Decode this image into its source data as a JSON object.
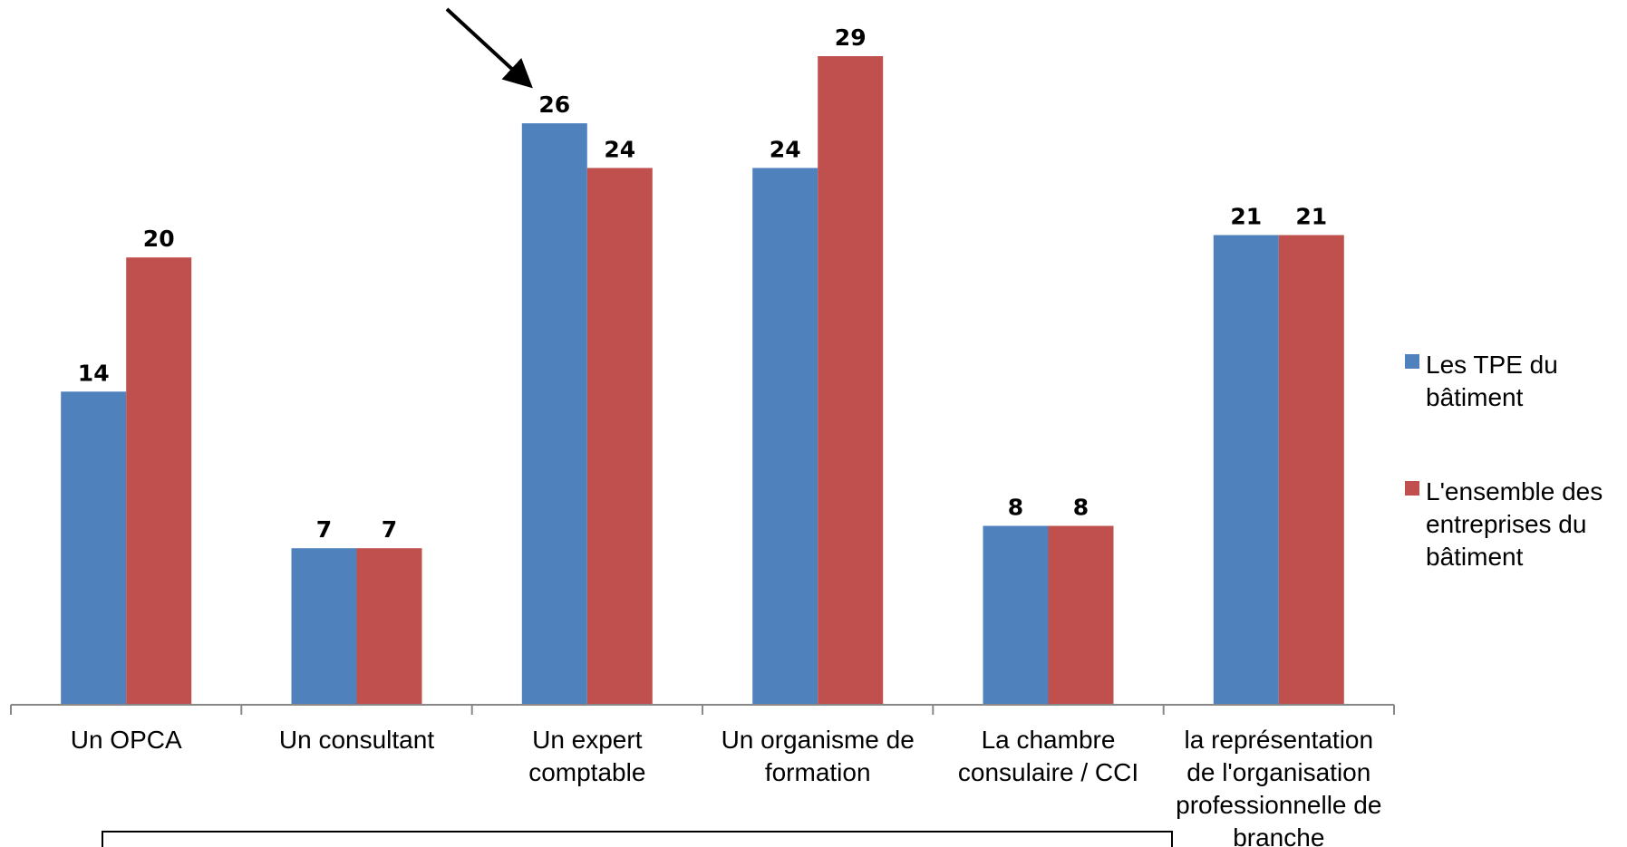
{
  "chart_data": {
    "type": "bar",
    "categories": [
      "Un OPCA",
      "Un consultant",
      "Un expert comptable",
      "Un organisme de formation",
      "La chambre consulaire / CCI",
      "la représentation de l'organisation professionnelle de branche"
    ],
    "category_lines": [
      [
        "Un OPCA"
      ],
      [
        "Un consultant"
      ],
      [
        "Un expert",
        "comptable"
      ],
      [
        "Un organisme de",
        "formation"
      ],
      [
        "La chambre",
        "consulaire / CCI"
      ],
      [
        "la représentation",
        "de l'organisation",
        "professionnelle de",
        "branche"
      ]
    ],
    "series": [
      {
        "name": "Les TPE du bâtiment",
        "name_lines": [
          "Les TPE du",
          "bâtiment"
        ],
        "color": "#4F81BD",
        "values": [
          14,
          7,
          26,
          24,
          8,
          21
        ]
      },
      {
        "name": "L'ensemble des entreprises du bâtiment",
        "name_lines": [
          "L'ensemble des",
          "entreprises du",
          "bâtiment"
        ],
        "color": "#C0504D",
        "values": [
          20,
          7,
          24,
          29,
          8,
          21
        ]
      }
    ],
    "ylim": [
      0,
      29
    ],
    "grid": false,
    "legend": "right",
    "annotation": {
      "type": "arrow",
      "points_to": "Un expert comptable — Les TPE du bâtiment (26)"
    }
  }
}
